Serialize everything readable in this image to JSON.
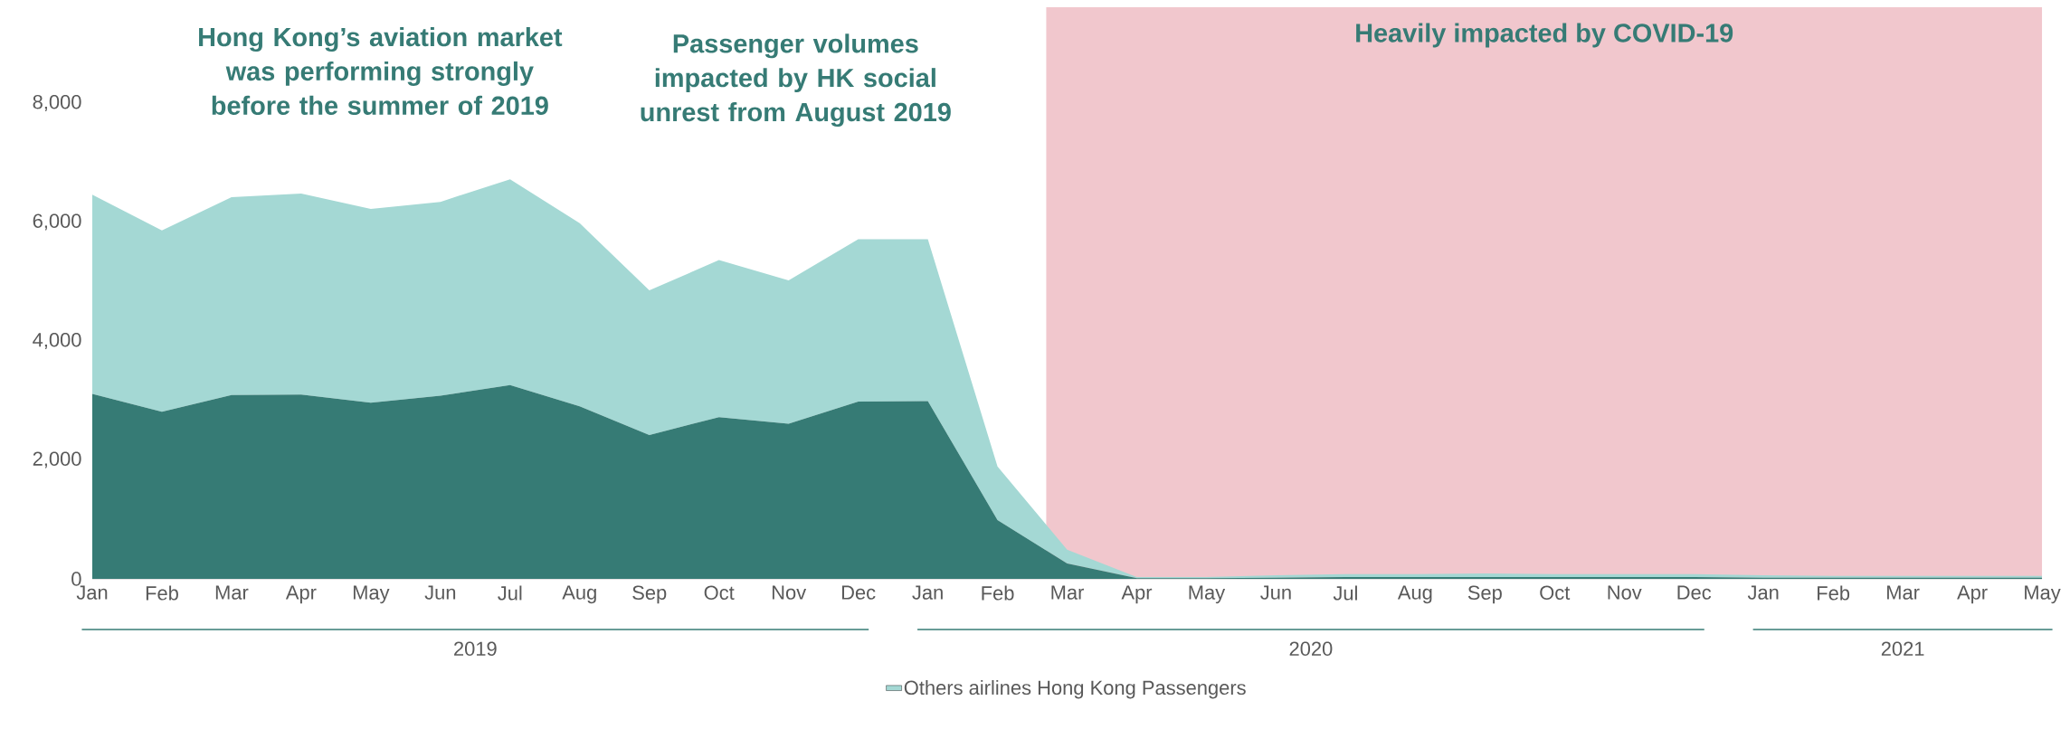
{
  "chart_data": {
    "type": "area",
    "stacked": true,
    "x": [
      "2019-01",
      "2019-02",
      "2019-03",
      "2019-04",
      "2019-05",
      "2019-06",
      "2019-07",
      "2019-08",
      "2019-09",
      "2019-10",
      "2019-11",
      "2019-12",
      "2020-01",
      "2020-02",
      "2020-03",
      "2020-04",
      "2020-05",
      "2020-06",
      "2020-07",
      "2020-08",
      "2020-09",
      "2020-10",
      "2020-11",
      "2020-12",
      "2021-01",
      "2021-02",
      "2021-03",
      "2021-04",
      "2021-05"
    ],
    "series": [
      {
        "color": "#367b75",
        "values": [
          3110,
          2810,
          3090,
          3100,
          2960,
          3080,
          3260,
          2900,
          2420,
          2720,
          2610,
          2980,
          2990,
          990,
          260,
          10,
          10,
          20,
          30,
          30,
          30,
          30,
          30,
          30,
          20,
          20,
          20,
          20,
          20
        ]
      },
      {
        "name": "Others airlines Hong Kong Passengers",
        "color": "#a4d8d4",
        "values": [
          3350,
          3050,
          3330,
          3380,
          3260,
          3260,
          3460,
          3080,
          2430,
          2640,
          2410,
          2730,
          2720,
          900,
          230,
          20,
          20,
          40,
          50,
          50,
          60,
          50,
          50,
          50,
          40,
          30,
          30,
          30,
          30
        ]
      }
    ],
    "xlim": [
      "2019-01",
      "2021-05"
    ],
    "xticks": [
      {
        "value": "2019-01",
        "label": "Jan"
      },
      {
        "value": "2019-02",
        "label": "Feb"
      },
      {
        "value": "2019-03",
        "label": "Mar"
      },
      {
        "value": "2019-04",
        "label": "Apr"
      },
      {
        "value": "2019-05",
        "label": "May"
      },
      {
        "value": "2019-06",
        "label": "Jun"
      },
      {
        "value": "2019-07",
        "label": "Jul"
      },
      {
        "value": "2019-08",
        "label": "Aug"
      },
      {
        "value": "2019-09",
        "label": "Sep"
      },
      {
        "value": "2019-10",
        "label": "Oct"
      },
      {
        "value": "2019-11",
        "label": "Nov"
      },
      {
        "value": "2019-12",
        "label": "Dec"
      },
      {
        "value": "2020-01",
        "label": "Jan"
      },
      {
        "value": "2020-02",
        "label": "Feb"
      },
      {
        "value": "2020-03",
        "label": "Mar"
      },
      {
        "value": "2020-04",
        "label": "Apr"
      },
      {
        "value": "2020-05",
        "label": "May"
      },
      {
        "value": "2020-06",
        "label": "Jun"
      },
      {
        "value": "2020-07",
        "label": "Jul"
      },
      {
        "value": "2020-08",
        "label": "Aug"
      },
      {
        "value": "2020-09",
        "label": "Sep"
      },
      {
        "value": "2020-10",
        "label": "Oct"
      },
      {
        "value": "2020-11",
        "label": "Nov"
      },
      {
        "value": "2020-12",
        "label": "Dec"
      },
      {
        "value": "2021-01",
        "label": "Jan"
      },
      {
        "value": "2021-02",
        "label": "Feb"
      },
      {
        "value": "2021-03",
        "label": "Mar"
      },
      {
        "value": "2021-04",
        "label": "Apr"
      },
      {
        "value": "2021-05",
        "label": "May"
      }
    ],
    "ylim": [
      0,
      8000
    ],
    "yticks": [
      0,
      {
        "value": 2000,
        "label": "2,000"
      },
      {
        "value": 4000,
        "label": "4,000"
      },
      {
        "value": 6000,
        "label": "6,000"
      },
      {
        "value": 8000,
        "label": "8,000"
      }
    ],
    "bands": [
      {
        "axis": "x",
        "from": "2020-02-22",
        "to": "2021-05",
        "label": "Heavily impacted by COVID-19",
        "color": "#f1c7cd"
      }
    ],
    "annotations": [
      "Hong Kong’s aviation market was performing strongly before the summer of 2019",
      "Passenger volumes impacted by HK social unrest from August 2019",
      "2019",
      "2020",
      "2021"
    ],
    "legend": "bottom",
    "grid": false
  }
}
